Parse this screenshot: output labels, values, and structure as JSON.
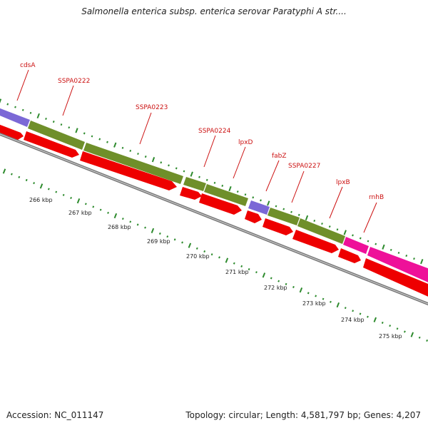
{
  "header": {
    "title": "Salmonella enterica subsp. enterica serovar Paratyphi A str...."
  },
  "footer": {
    "accession": "Accession: NC_011147",
    "summary": "Topology: circular; Length: 4,581,797 bp; Genes: 4,207"
  },
  "colors": {
    "gene_feature": "#6f8f2a",
    "cds_arrow": "#ee0000",
    "purple_feature": "#7b68d6",
    "magenta_feature": "#ee1199",
    "backbone": "#888888",
    "tick": "#2e8b2e",
    "label_red": "#cc1111"
  },
  "gene_labels": [
    {
      "name": "cdsA"
    },
    {
      "name": "SSPA0222"
    },
    {
      "name": "SSPA0223"
    },
    {
      "name": "SSPA0224"
    },
    {
      "name": "lpxD"
    },
    {
      "name": "fabZ"
    },
    {
      "name": "SSPA0227"
    },
    {
      "name": "lpxB"
    },
    {
      "name": "rnhB"
    }
  ],
  "kbp_labels": [
    {
      "text": "266 kbp"
    },
    {
      "text": "267 kbp"
    },
    {
      "text": "268 kbp"
    },
    {
      "text": "269 kbp"
    },
    {
      "text": "270 kbp"
    },
    {
      "text": "271 kbp"
    },
    {
      "text": "272 kbp"
    },
    {
      "text": "273 kbp"
    },
    {
      "text": "274 kbp"
    },
    {
      "text": "275 kbp"
    }
  ]
}
